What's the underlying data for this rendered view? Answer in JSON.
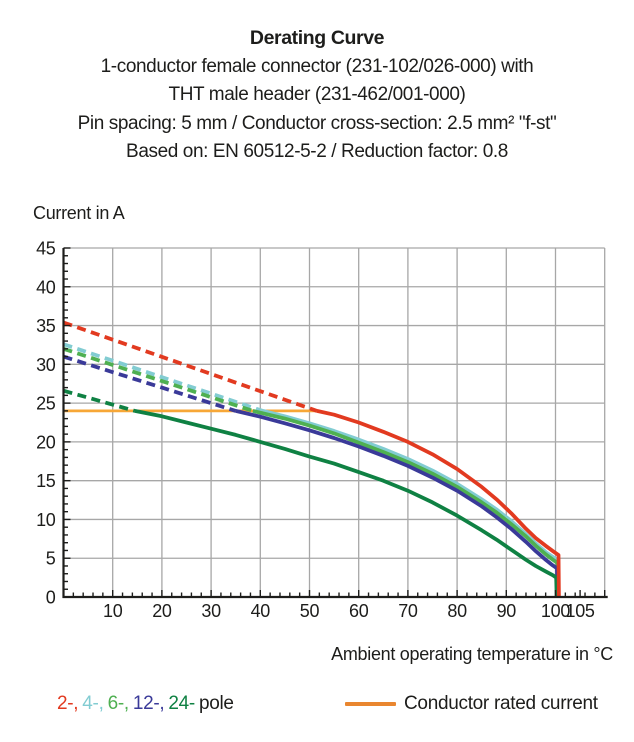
{
  "header": {
    "title": "Derating Curve",
    "subtitle_lines": [
      "1-conductor female connector (231-102/026-000) with",
      "THT male header (231-462/001-000)",
      "Pin spacing: 5 mm / Conductor cross-section: 2.5 mm² \"f-st\"",
      "Based on: EN 60512-5-2 / Reduction factor: 0.8"
    ]
  },
  "chart_data": {
    "type": "line",
    "title": "Derating Curve",
    "xlabel": "Ambient operating temperature in °C",
    "ylabel": "Current in A",
    "xlim": [
      0,
      110
    ],
    "ylim": [
      0,
      45
    ],
    "x_major_ticks": [
      10,
      20,
      30,
      40,
      50,
      60,
      70,
      80,
      90,
      100,
      105
    ],
    "y_major_ticks": [
      0,
      5,
      10,
      15,
      20,
      25,
      30,
      35,
      40,
      45
    ],
    "x_minor_step": 2,
    "y_minor_step": 1,
    "grid": true,
    "grid_color": "#a7a7a7",
    "axis_color": "#1d1d1b",
    "rated_current_line": {
      "label": "Conductor rated current",
      "value": 24,
      "x_start": 0,
      "x_end": 52,
      "color": "#f7a737"
    },
    "series": [
      {
        "name": "2-pole",
        "color": "#e23a20",
        "style_above_rated": "dashed",
        "dashed": [
          [
            0,
            35.4
          ],
          [
            51.5,
            24
          ]
        ],
        "solid": [
          [
            51.5,
            24
          ],
          [
            55,
            23.5
          ],
          [
            60,
            22.5
          ],
          [
            65,
            21.3
          ],
          [
            70,
            20.0
          ],
          [
            75,
            18.4
          ],
          [
            80,
            16.5
          ],
          [
            85,
            14.2
          ],
          [
            88,
            12.6
          ],
          [
            91,
            10.8
          ],
          [
            94,
            8.8
          ],
          [
            96,
            7.6
          ],
          [
            98,
            6.6
          ],
          [
            99.5,
            5.9
          ],
          [
            100.6,
            5.4
          ],
          [
            100.7,
            0
          ]
        ]
      },
      {
        "name": "4-pole",
        "color": "#82ccd2",
        "style_above_rated": "dashed",
        "dashed": [
          [
            0,
            32.6
          ],
          [
            40.5,
            24
          ]
        ],
        "solid": [
          [
            40.5,
            24
          ],
          [
            45,
            23.3
          ],
          [
            50,
            22.4
          ],
          [
            55,
            21.4
          ],
          [
            60,
            20.3
          ],
          [
            65,
            19.1
          ],
          [
            70,
            17.8
          ],
          [
            75,
            16.3
          ],
          [
            80,
            14.6
          ],
          [
            85,
            12.6
          ],
          [
            88,
            11.3
          ],
          [
            91,
            9.8
          ],
          [
            94,
            8.1
          ],
          [
            96,
            6.9
          ],
          [
            98,
            5.8
          ],
          [
            99.6,
            5.1
          ],
          [
            100.5,
            4.7
          ],
          [
            100.6,
            0
          ]
        ]
      },
      {
        "name": "6-pole",
        "color": "#4fb051",
        "style_above_rated": "dashed",
        "dashed": [
          [
            0,
            32.0
          ],
          [
            38.5,
            24
          ]
        ],
        "solid": [
          [
            38.5,
            24
          ],
          [
            45,
            23.0
          ],
          [
            50,
            22.1
          ],
          [
            55,
            21.1
          ],
          [
            60,
            19.9
          ],
          [
            65,
            18.7
          ],
          [
            70,
            17.4
          ],
          [
            75,
            15.9
          ],
          [
            80,
            14.2
          ],
          [
            85,
            12.2
          ],
          [
            88,
            10.9
          ],
          [
            91,
            9.4
          ],
          [
            94,
            7.8
          ],
          [
            96,
            6.6
          ],
          [
            98,
            5.5
          ],
          [
            99.5,
            4.8
          ],
          [
            100.4,
            4.4
          ],
          [
            100.5,
            0
          ]
        ]
      },
      {
        "name": "12-pole",
        "color": "#3a3a99",
        "style_above_rated": "dashed",
        "dashed": [
          [
            0,
            31.0
          ],
          [
            35,
            24
          ]
        ],
        "solid": [
          [
            35,
            24
          ],
          [
            40,
            23.25
          ],
          [
            45,
            22.4
          ],
          [
            50,
            21.5
          ],
          [
            55,
            20.5
          ],
          [
            60,
            19.4
          ],
          [
            65,
            18.2
          ],
          [
            70,
            16.9
          ],
          [
            75,
            15.4
          ],
          [
            80,
            13.7
          ],
          [
            85,
            11.7
          ],
          [
            88,
            10.3
          ],
          [
            91,
            8.8
          ],
          [
            94,
            7.1
          ],
          [
            96,
            5.9
          ],
          [
            98,
            4.8
          ],
          [
            99.4,
            4.1
          ],
          [
            100.3,
            3.7
          ],
          [
            100.4,
            0
          ]
        ]
      },
      {
        "name": "24-pole",
        "color": "#0f8143",
        "style_above_rated": "dashed",
        "dashed": [
          [
            0,
            26.6
          ],
          [
            14.5,
            24
          ]
        ],
        "solid": [
          [
            14.5,
            24
          ],
          [
            20,
            23.3
          ],
          [
            25,
            22.5
          ],
          [
            30,
            21.7
          ],
          [
            35,
            20.9
          ],
          [
            40,
            20.0
          ],
          [
            45,
            19.1
          ],
          [
            50,
            18.1
          ],
          [
            55,
            17.2
          ],
          [
            60,
            16.1
          ],
          [
            65,
            15.0
          ],
          [
            70,
            13.7
          ],
          [
            75,
            12.2
          ],
          [
            80,
            10.5
          ],
          [
            85,
            8.6
          ],
          [
            88,
            7.4
          ],
          [
            91,
            6.1
          ],
          [
            94,
            4.8
          ],
          [
            96,
            4.0
          ],
          [
            98,
            3.3
          ],
          [
            99.5,
            2.8
          ],
          [
            100.15,
            2.5
          ],
          [
            100.25,
            0
          ]
        ]
      }
    ]
  },
  "legend": {
    "pole_items": [
      {
        "label": "2-,",
        "color": "#e23a20"
      },
      {
        "label": "4-,",
        "color": "#82ccd2"
      },
      {
        "label": "6-,",
        "color": "#4fb051"
      },
      {
        "label": "12-,",
        "color": "#3a3a99"
      },
      {
        "label": "24-",
        "color": "#0f8143"
      },
      {
        "label": "pole",
        "color": "#1d1d1b"
      }
    ],
    "rated": {
      "label": "Conductor rated current",
      "swatch_color": "#e9862f"
    }
  }
}
